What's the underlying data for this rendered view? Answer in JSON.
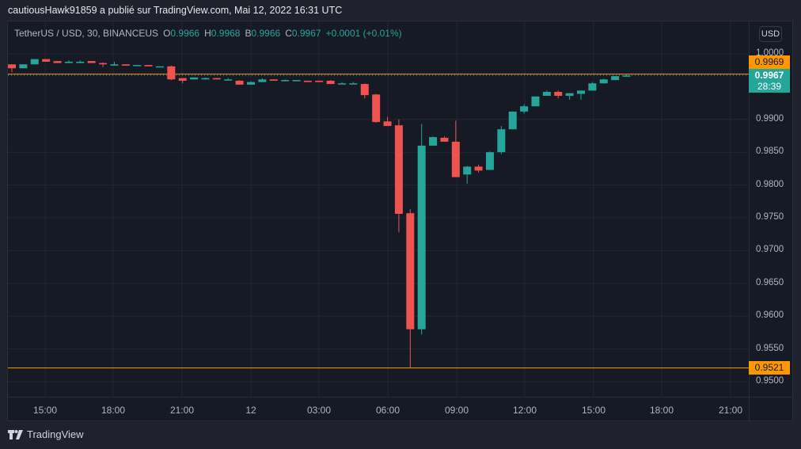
{
  "header": {
    "published_by": "cautiousHawk91859 a publié sur TradingView.com, Mai 12, 2022 16:31 UTC"
  },
  "legend": {
    "symbol": "TetherUS / USD, 30, BINANCEUS",
    "open_label": "O",
    "open": "0.9966",
    "high_label": "H",
    "high": "0.9968",
    "low_label": "B",
    "low": "0.9966",
    "close_label": "C",
    "close": "0.9967",
    "change": "+0.0001 (+0.01%)"
  },
  "currency_button": "USD",
  "price_scale": {
    "ticks": [
      "1.0000",
      "0.9900",
      "0.9850",
      "0.9800",
      "0.9750",
      "0.9700",
      "0.9650",
      "0.9600",
      "0.9550",
      "0.9500"
    ],
    "alert_high": "0.9969",
    "last_price": "0.9967",
    "countdown": "28:39",
    "alert_low": "0.9521"
  },
  "time_scale": {
    "ticks": [
      "15:00",
      "18:00",
      "21:00",
      "12",
      "03:00",
      "06:00",
      "09:00",
      "12:00",
      "15:00",
      "18:00",
      "21:00"
    ]
  },
  "footer": {
    "brand": "TradingView"
  },
  "colors": {
    "up": "#26a69a",
    "down": "#ef5350",
    "alert_line": "#ff9800",
    "background": "#161a25",
    "grid": "#232733"
  },
  "chart_data": {
    "type": "candlestick",
    "title": "TetherUS / USD, 30, BINANCEUS",
    "xlabel": "",
    "ylabel": "USD",
    "ylim": [
      0.948,
      1.001
    ],
    "grid": true,
    "interval": "30m",
    "x_ticks": [
      "15:00",
      "18:00",
      "21:00",
      "12",
      "03:00",
      "06:00",
      "09:00",
      "12:00",
      "15:00",
      "18:00",
      "21:00"
    ],
    "horizontal_lines": [
      {
        "price": 0.9969,
        "color": "#ff9800",
        "style": "dotted"
      },
      {
        "price": 0.9521,
        "color": "#ff9800",
        "style": "solid"
      }
    ],
    "last_price": 0.9967,
    "candles": [
      {
        "o": 0.9984,
        "h": 0.9984,
        "l": 0.9972,
        "c": 0.9978
      },
      {
        "o": 0.9978,
        "h": 0.9984,
        "l": 0.9978,
        "c": 0.9984
      },
      {
        "o": 0.9984,
        "h": 0.9992,
        "l": 0.9984,
        "c": 0.9992
      },
      {
        "o": 0.9992,
        "h": 0.9992,
        "l": 0.9988,
        "c": 0.9988
      },
      {
        "o": 0.9989,
        "h": 0.9989,
        "l": 0.9986,
        "c": 0.9986
      },
      {
        "o": 0.9986,
        "h": 0.999,
        "l": 0.9986,
        "c": 0.9988
      },
      {
        "o": 0.9986,
        "h": 0.999,
        "l": 0.9986,
        "c": 0.9988
      },
      {
        "o": 0.9989,
        "h": 0.9989,
        "l": 0.9986,
        "c": 0.9986
      },
      {
        "o": 0.9986,
        "h": 0.9987,
        "l": 0.998,
        "c": 0.9984
      },
      {
        "o": 0.9982,
        "h": 0.9988,
        "l": 0.9982,
        "c": 0.9984
      },
      {
        "o": 0.9984,
        "h": 0.9984,
        "l": 0.9982,
        "c": 0.9982
      },
      {
        "o": 0.9982,
        "h": 0.9983,
        "l": 0.9982,
        "c": 0.9983
      },
      {
        "o": 0.9983,
        "h": 0.9983,
        "l": 0.9981,
        "c": 0.9981
      },
      {
        "o": 0.9981,
        "h": 0.9981,
        "l": 0.9981,
        "c": 0.9981
      },
      {
        "o": 0.9981,
        "h": 0.9982,
        "l": 0.996,
        "c": 0.9961
      },
      {
        "o": 0.9963,
        "h": 0.9963,
        "l": 0.9955,
        "c": 0.9959
      },
      {
        "o": 0.9961,
        "h": 0.9964,
        "l": 0.9961,
        "c": 0.9964
      },
      {
        "o": 0.9961,
        "h": 0.9964,
        "l": 0.9961,
        "c": 0.9963
      },
      {
        "o": 0.9963,
        "h": 0.9963,
        "l": 0.9961,
        "c": 0.9961
      },
      {
        "o": 0.996,
        "h": 0.9963,
        "l": 0.996,
        "c": 0.9961
      },
      {
        "o": 0.9959,
        "h": 0.996,
        "l": 0.9953,
        "c": 0.9953
      },
      {
        "o": 0.9953,
        "h": 0.9958,
        "l": 0.9953,
        "c": 0.9957
      },
      {
        "o": 0.9957,
        "h": 0.9963,
        "l": 0.9957,
        "c": 0.9961
      },
      {
        "o": 0.9961,
        "h": 0.9961,
        "l": 0.9959,
        "c": 0.9959
      },
      {
        "o": 0.9959,
        "h": 0.9961,
        "l": 0.9959,
        "c": 0.996
      },
      {
        "o": 0.9959,
        "h": 0.996,
        "l": 0.9959,
        "c": 0.996
      },
      {
        "o": 0.9959,
        "h": 0.9959,
        "l": 0.9957,
        "c": 0.9957
      },
      {
        "o": 0.9959,
        "h": 0.9959,
        "l": 0.9957,
        "c": 0.9957
      },
      {
        "o": 0.9959,
        "h": 0.996,
        "l": 0.9954,
        "c": 0.9954
      },
      {
        "o": 0.9954,
        "h": 0.9957,
        "l": 0.9954,
        "c": 0.9955
      },
      {
        "o": 0.9954,
        "h": 0.9957,
        "l": 0.9954,
        "c": 0.9955
      },
      {
        "o": 0.9954,
        "h": 0.9955,
        "l": 0.9932,
        "c": 0.9937
      },
      {
        "o": 0.9938,
        "h": 0.9939,
        "l": 0.9895,
        "c": 0.9896
      },
      {
        "o": 0.9897,
        "h": 0.9904,
        "l": 0.989,
        "c": 0.989
      },
      {
        "o": 0.9891,
        "h": 0.99,
        "l": 0.9728,
        "c": 0.9756
      },
      {
        "o": 0.9757,
        "h": 0.9763,
        "l": 0.9521,
        "c": 0.958
      },
      {
        "o": 0.958,
        "h": 0.9893,
        "l": 0.9572,
        "c": 0.986
      },
      {
        "o": 0.986,
        "h": 0.9874,
        "l": 0.986,
        "c": 0.9873
      },
      {
        "o": 0.9872,
        "h": 0.9874,
        "l": 0.9866,
        "c": 0.9866
      },
      {
        "o": 0.9866,
        "h": 0.9898,
        "l": 0.9812,
        "c": 0.9812
      },
      {
        "o": 0.9816,
        "h": 0.9829,
        "l": 0.9802,
        "c": 0.9828
      },
      {
        "o": 0.9828,
        "h": 0.9831,
        "l": 0.9819,
        "c": 0.9822
      },
      {
        "o": 0.9823,
        "h": 0.9851,
        "l": 0.9823,
        "c": 0.985
      },
      {
        "o": 0.985,
        "h": 0.989,
        "l": 0.9847,
        "c": 0.9885
      },
      {
        "o": 0.9885,
        "h": 0.9912,
        "l": 0.9885,
        "c": 0.9912
      },
      {
        "o": 0.9912,
        "h": 0.9923,
        "l": 0.9909,
        "c": 0.992
      },
      {
        "o": 0.992,
        "h": 0.9935,
        "l": 0.992,
        "c": 0.9935
      },
      {
        "o": 0.9936,
        "h": 0.9944,
        "l": 0.9936,
        "c": 0.9942
      },
      {
        "o": 0.9942,
        "h": 0.9944,
        "l": 0.9932,
        "c": 0.9936
      },
      {
        "o": 0.9936,
        "h": 0.994,
        "l": 0.993,
        "c": 0.994
      },
      {
        "o": 0.9939,
        "h": 0.9944,
        "l": 0.993,
        "c": 0.9944
      },
      {
        "o": 0.9944,
        "h": 0.9957,
        "l": 0.9944,
        "c": 0.9955
      },
      {
        "o": 0.9955,
        "h": 0.9962,
        "l": 0.9955,
        "c": 0.9961
      },
      {
        "o": 0.996,
        "h": 0.9966,
        "l": 0.996,
        "c": 0.9966
      },
      {
        "o": 0.9966,
        "h": 0.9968,
        "l": 0.9966,
        "c": 0.9967
      }
    ]
  }
}
